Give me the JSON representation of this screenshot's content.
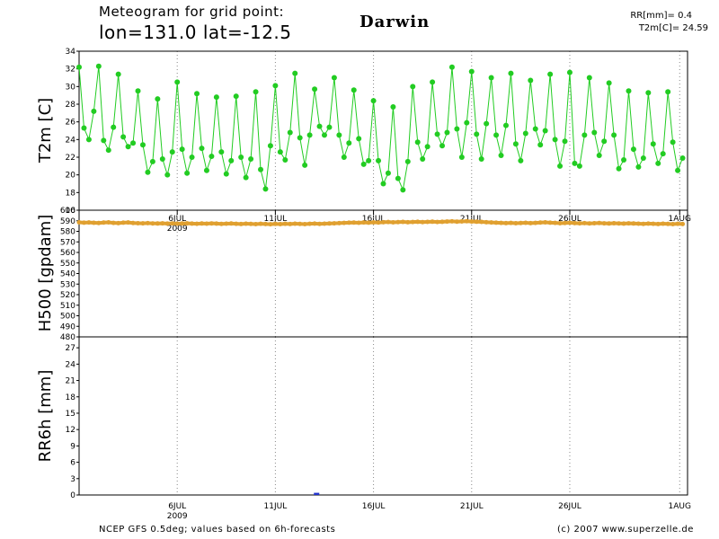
{
  "header": {
    "line1": "Meteogram for grid point:",
    "line2": "lon=131.0 lat=-12.5",
    "city": "Darwin",
    "summary_rr": "RR[mm]= 0.4",
    "summary_t2m": "T2m[C]= 24.59"
  },
  "footer": {
    "left": "NCEP GFS 0.5deg; values based on 6h-forecasts",
    "right": "(c) 2007 www.superzelle.de"
  },
  "colors": {
    "t2m": "#22cc22",
    "h500": "#e0a030",
    "rr6h": "#2233cc",
    "grid": "#888888",
    "frame": "#000000"
  },
  "chart_data": [
    {
      "type": "line",
      "ylabel": "T2m [C]",
      "ylim": [
        16,
        34
      ],
      "yticks": [
        16,
        18,
        20,
        22,
        24,
        26,
        28,
        30,
        32,
        34
      ],
      "x_range": [
        0,
        31
      ],
      "xtick_positions": [
        5,
        10,
        15,
        20,
        25,
        30.6
      ],
      "xtick_labels": [
        "6JUL",
        "11JUL",
        "16JUL",
        "21JUL",
        "26JUL",
        "1AUG"
      ],
      "year_label": "2009",
      "grid": true,
      "series": [
        {
          "step_hours": 6,
          "values": [
            32.2,
            25.3,
            24.0,
            27.2,
            32.3,
            23.9,
            22.8,
            25.4,
            31.4,
            24.3,
            23.2,
            23.6,
            29.5,
            23.4,
            20.3,
            21.5,
            28.6,
            21.8,
            20.0,
            22.6,
            30.5,
            22.9,
            20.2,
            22.0,
            29.2,
            23.0,
            20.5,
            22.1,
            28.8,
            22.6,
            20.1,
            21.6,
            28.9,
            22.0,
            19.7,
            21.8,
            29.4,
            20.6,
            18.4,
            23.3,
            30.1,
            22.6,
            21.7,
            24.8,
            31.5,
            24.2,
            21.1,
            24.5,
            29.7,
            25.5,
            24.5,
            25.4,
            31.0,
            24.5,
            22.0,
            23.6,
            29.6,
            24.1,
            21.2,
            21.6,
            28.4,
            21.6,
            19.0,
            20.2,
            27.7,
            19.6,
            18.3,
            21.5,
            30.0,
            23.7,
            21.8,
            23.2,
            30.5,
            24.6,
            23.3,
            24.8,
            32.2,
            25.2,
            22.0,
            25.9,
            31.7,
            24.6,
            21.8,
            25.8,
            31.0,
            24.5,
            22.2,
            25.6,
            31.5,
            23.5,
            21.6,
            24.7,
            30.7,
            25.2,
            23.4,
            25.0,
            31.4,
            24.0,
            21.0,
            23.8,
            31.6,
            21.3,
            21.0,
            24.5,
            31.0,
            24.8,
            22.2,
            23.8,
            30.4,
            24.5,
            20.7,
            21.7,
            29.5,
            22.9,
            20.9,
            21.9,
            29.3,
            23.5,
            21.3,
            22.4,
            29.4,
            23.7,
            20.5,
            21.9
          ]
        }
      ]
    },
    {
      "type": "line",
      "ylabel": "H500 [gpdam]",
      "ylim": [
        480,
        600
      ],
      "yticks": [
        480,
        490,
        500,
        510,
        520,
        530,
        540,
        550,
        560,
        570,
        580,
        590,
        600
      ],
      "x_range": [
        0,
        31
      ],
      "xtick_positions": [
        5,
        10,
        15,
        20,
        25,
        30.6
      ],
      "xtick_labels": [
        "6JUL",
        "11JUL",
        "16JUL",
        "21JUL",
        "26JUL",
        "1AUG"
      ],
      "year_label": "2009",
      "grid": true,
      "series": [
        {
          "step_hours": 6,
          "values": [
            588.5,
            588.2,
            588.4,
            588.1,
            587.9,
            588.3,
            588.5,
            588.0,
            587.8,
            588.2,
            588.4,
            587.9,
            587.7,
            587.6,
            587.8,
            587.5,
            587.4,
            587.6,
            587.3,
            587.5,
            587.2,
            587.4,
            587.6,
            587.3,
            587.1,
            587.4,
            587.2,
            587.5,
            587.3,
            587.0,
            587.2,
            587.4,
            587.1,
            586.9,
            587.2,
            587.0,
            586.8,
            587.1,
            586.9,
            586.7,
            587.0,
            586.8,
            587.1,
            586.9,
            587.2,
            587.0,
            586.8,
            587.1,
            587.3,
            587.0,
            587.2,
            587.4,
            587.6,
            587.8,
            588.0,
            588.2,
            588.3,
            588.1,
            588.4,
            588.2,
            588.5,
            588.3,
            588.6,
            588.8,
            588.5,
            588.7,
            588.9,
            588.6,
            588.8,
            589.0,
            588.7,
            588.9,
            589.1,
            588.8,
            589.0,
            589.3,
            589.5,
            589.2,
            589.4,
            589.6,
            589.3,
            589.1,
            588.9,
            588.6,
            588.4,
            588.2,
            588.0,
            587.8,
            588.0,
            587.7,
            587.9,
            588.1,
            587.8,
            588.0,
            588.3,
            588.5,
            588.2,
            588.0,
            587.7,
            587.9,
            588.1,
            587.8,
            587.6,
            587.8,
            587.5,
            587.7,
            587.9,
            587.6,
            587.4,
            587.7,
            587.5,
            587.3,
            587.6,
            587.4,
            587.2,
            587.0,
            587.3,
            587.1,
            586.9,
            587.2,
            587.0,
            586.8,
            587.1,
            586.9
          ]
        }
      ]
    },
    {
      "type": "bar",
      "ylabel": "RR6h [mm]",
      "ylim": [
        0,
        29
      ],
      "yticks": [
        0,
        3,
        6,
        9,
        12,
        15,
        18,
        21,
        24,
        27
      ],
      "x_range": [
        0,
        31
      ],
      "xtick_positions": [
        5,
        10,
        15,
        20,
        25,
        30.6
      ],
      "xtick_labels": [
        "6JUL",
        "11JUL",
        "16JUL",
        "21JUL",
        "26JUL",
        "1AUG"
      ],
      "year_label": "2009",
      "grid": true,
      "series": [
        {
          "x": [
            12.1
          ],
          "values": [
            0.4
          ]
        }
      ]
    }
  ]
}
